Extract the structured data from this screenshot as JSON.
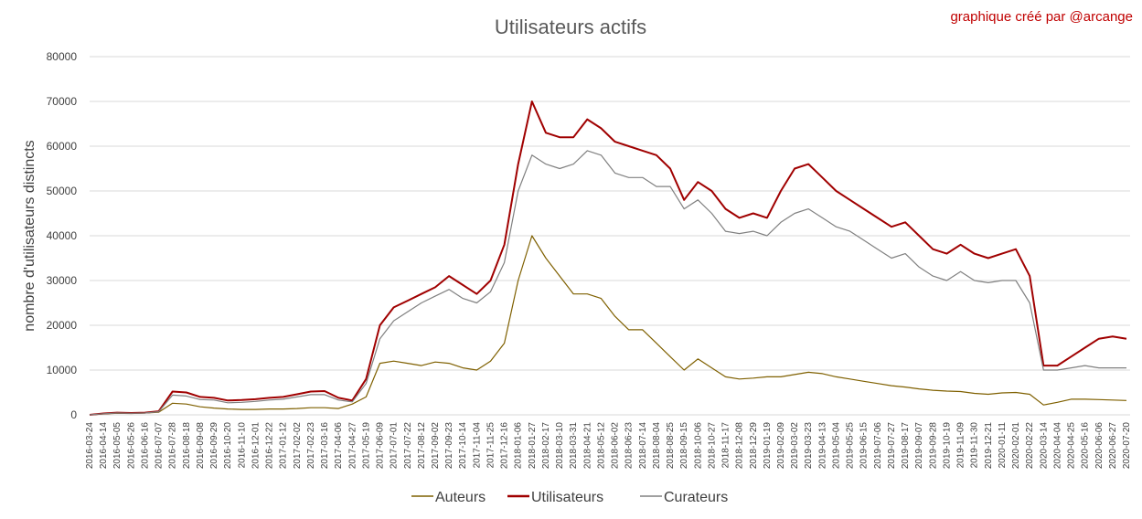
{
  "chart_data": {
    "type": "line",
    "title": "Utilisateurs actifs",
    "annotation": "graphique créé par @arcange",
    "xlabel": "",
    "ylabel": "nombre d'utilisateurs distincts",
    "ylim": [
      0,
      80000
    ],
    "yticks": [
      "0",
      "10000",
      "20000",
      "30000",
      "40000",
      "50000",
      "60000",
      "70000",
      "80000"
    ],
    "x_tick_labels": [
      "2016-03-24",
      "2016-04-14",
      "2016-05-05",
      "2016-05-26",
      "2016-06-16",
      "2016-07-07",
      "2016-07-28",
      "2016-08-18",
      "2016-09-08",
      "2016-09-29",
      "2016-10-20",
      "2016-11-10",
      "2016-12-01",
      "2016-12-22",
      "2017-01-12",
      "2017-02-02",
      "2017-02-23",
      "2017-03-16",
      "2017-04-06",
      "2017-04-27",
      "2017-05-19",
      "2017-06-09",
      "2017-07-01",
      "2017-07-22",
      "2017-08-12",
      "2017-09-02",
      "2017-09-23",
      "2017-10-14",
      "2017-11-04",
      "2017-11-25",
      "2017-12-16",
      "2018-01-06",
      "2018-01-27",
      "2018-02-17",
      "2018-03-10",
      "2018-03-31",
      "2018-04-21",
      "2018-05-12",
      "2018-06-02",
      "2018-06-23",
      "2018-07-14",
      "2018-08-04",
      "2018-08-25",
      "2018-09-15",
      "2018-10-06",
      "2018-10-27",
      "2018-11-17",
      "2018-12-08",
      "2018-12-29",
      "2019-01-19",
      "2019-02-09",
      "2019-03-02",
      "2019-03-23",
      "2019-04-13",
      "2019-05-04",
      "2019-05-25",
      "2019-06-15",
      "2019-07-06",
      "2019-07-27",
      "2019-08-17",
      "2019-09-07",
      "2019-09-28",
      "2019-10-19",
      "2019-11-09",
      "2019-11-30",
      "2019-12-21",
      "2020-01-11",
      "2020-02-01",
      "2020-02-22",
      "2020-03-14",
      "2020-04-04",
      "2020-04-25",
      "2020-05-16",
      "2020-06-06",
      "2020-06-27",
      "2020-07-20"
    ],
    "legend_position": "bottom",
    "grid": true,
    "series": [
      {
        "name": "Auteurs",
        "color": "#7f6000",
        "values": [
          0,
          200,
          350,
          300,
          400,
          600,
          2600,
          2400,
          1800,
          1500,
          1300,
          1200,
          1200,
          1300,
          1300,
          1400,
          1600,
          1600,
          1400,
          2400,
          4000,
          11500,
          12000,
          11500,
          11000,
          11800,
          11500,
          10500,
          10000,
          12000,
          16000,
          30000,
          40000,
          35000,
          31000,
          27000,
          27000,
          26000,
          22000,
          19000,
          19000,
          16000,
          13000,
          10000,
          12500,
          10500,
          8500,
          8000,
          8200,
          8500,
          8500,
          9000,
          9500,
          9200,
          8500,
          8000,
          7500,
          7000,
          6500,
          6200,
          5800,
          5500,
          5300,
          5200,
          4800,
          4600,
          4900,
          5000,
          4600,
          2200,
          2800,
          3500,
          3500,
          3400,
          3300,
          3200
        ]
      },
      {
        "name": "Utilisateurs",
        "color": "#a00000",
        "values": [
          0,
          300,
          500,
          400,
          500,
          800,
          5200,
          5000,
          4000,
          3800,
          3200,
          3300,
          3500,
          3800,
          4000,
          4600,
          5200,
          5300,
          3800,
          3200,
          8000,
          20000,
          24000,
          25500,
          27000,
          28500,
          31000,
          29000,
          27000,
          30000,
          38000,
          56000,
          70000,
          63000,
          62000,
          62000,
          66000,
          64000,
          61000,
          60000,
          59000,
          58000,
          55000,
          48000,
          52000,
          50000,
          46000,
          44000,
          45000,
          44000,
          50000,
          55000,
          56000,
          53000,
          50000,
          48000,
          46000,
          44000,
          42000,
          43000,
          40000,
          37000,
          36000,
          38000,
          36000,
          35000,
          36000,
          37000,
          31000,
          11000,
          11000,
          13000,
          15000,
          17000,
          17500,
          17000
        ]
      },
      {
        "name": "Curateurs",
        "color": "#808080",
        "values": [
          0,
          250,
          400,
          350,
          400,
          700,
          4400,
          4200,
          3400,
          3300,
          2700,
          2800,
          3000,
          3300,
          3500,
          4000,
          4500,
          4500,
          3300,
          2900,
          7000,
          17000,
          21000,
          23000,
          25000,
          26500,
          28000,
          26000,
          25000,
          27500,
          34000,
          50000,
          58000,
          56000,
          55000,
          56000,
          59000,
          58000,
          54000,
          53000,
          53000,
          51000,
          51000,
          46000,
          48000,
          45000,
          41000,
          40500,
          41000,
          40000,
          43000,
          45000,
          46000,
          44000,
          42000,
          41000,
          39000,
          37000,
          35000,
          36000,
          33000,
          31000,
          30000,
          32000,
          30000,
          29500,
          30000,
          30000,
          25000,
          10000,
          10000,
          10500,
          11000,
          10500,
          10500,
          10500
        ]
      }
    ]
  }
}
